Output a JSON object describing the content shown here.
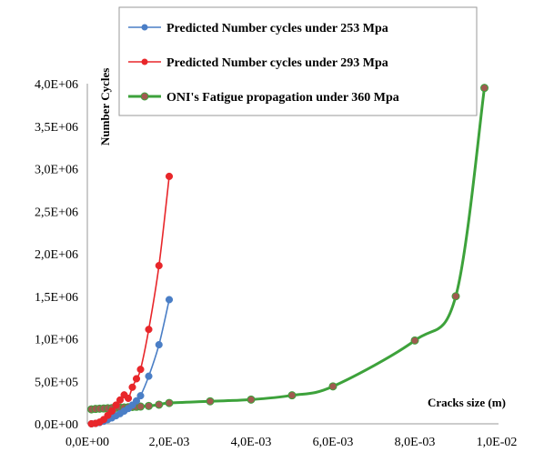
{
  "chart_data": {
    "type": "line",
    "title": "",
    "xlabel": "Cracks size (m)",
    "ylabel": "Number  Cycles",
    "xlim": [
      0,
      0.01
    ],
    "ylim": [
      0,
      4000000
    ],
    "grid": false,
    "legend_position": "top-right",
    "x_tick_labels": [
      "0,0E+00",
      "2,0E-03",
      "4,0E-03",
      "6,0E-03",
      "8,0E-03",
      "1,0E-02"
    ],
    "y_tick_labels": [
      "0,0E+00",
      "5,0E+05",
      "1,0E+06",
      "1,5E+06",
      "2,0E+06",
      "2,5E+06",
      "3,0E+06",
      "3,5E+06",
      "4,0E+06"
    ],
    "series": [
      {
        "name": "Predicted Number cycles under 253 Mpa",
        "color": "#4a7ec6",
        "x": [
          0.0001,
          0.0002,
          0.0003,
          0.0004,
          0.0005,
          0.0006,
          0.0007,
          0.0008,
          0.0009,
          0.001,
          0.0011,
          0.0012,
          0.0013,
          0.0015,
          0.00175,
          0.002
        ],
        "y": [
          0,
          5000,
          15000,
          30000,
          50000,
          70000,
          95000,
          120000,
          150000,
          180000,
          220000,
          270000,
          330000,
          560000,
          930000,
          1460000
        ]
      },
      {
        "name": "Predicted Number cycles under 293 Mpa",
        "color": "#e8262a",
        "x": [
          0.0001,
          0.0002,
          0.0003,
          0.0004,
          0.0005,
          0.0006,
          0.0007,
          0.0008,
          0.0009,
          0.001,
          0.0011,
          0.0012,
          0.0013,
          0.0015,
          0.00175,
          0.002
        ],
        "y": [
          0,
          5000,
          20000,
          50000,
          100000,
          150000,
          220000,
          280000,
          340000,
          300000,
          430000,
          530000,
          640000,
          1110000,
          1860000,
          2910000
        ]
      },
      {
        "name": "ONI's Fatigue propagation under 360 Mpa",
        "color": "#3da23b",
        "marker_color": "#a05a50",
        "x": [
          0.0001,
          0.0002,
          0.0003,
          0.0004,
          0.0005,
          0.0006,
          0.0007,
          0.0008,
          0.0009,
          0.001,
          0.0011,
          0.0012,
          0.0013,
          0.0015,
          0.00175,
          0.002,
          0.003,
          0.004,
          0.005,
          0.006,
          0.008,
          0.009,
          0.0097
        ],
        "y": [
          170000,
          175000,
          178000,
          180000,
          183000,
          185000,
          188000,
          190000,
          192000,
          195000,
          198000,
          200000,
          203000,
          210000,
          225000,
          245000,
          265000,
          285000,
          335000,
          440000,
          980000,
          1500000,
          3950000
        ]
      }
    ]
  }
}
